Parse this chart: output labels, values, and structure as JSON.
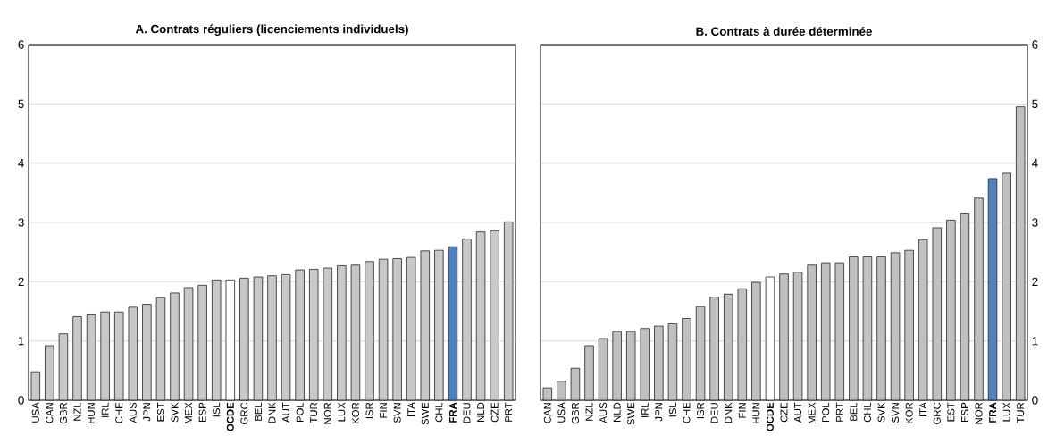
{
  "chart_data": [
    {
      "type": "bar",
      "title": "A. Contrats réguliers (licenciements individuels)",
      "categories": [
        "USA",
        "CAN",
        "GBR",
        "NZL",
        "HUN",
        "IRL",
        "CHE",
        "AUS",
        "JPN",
        "EST",
        "SVK",
        "MEX",
        "ESP",
        "ISL",
        "**OCDE**",
        "GRC",
        "BEL",
        "DNK",
        "AUT",
        "POL",
        "TUR",
        "NOR",
        "LUX",
        "KOR",
        "ISR",
        "FIN",
        "SVN",
        "ITA",
        "SWE",
        "CHL",
        "**FRA**",
        "DEU",
        "NLD",
        "CZE",
        "PRT"
      ],
      "values": [
        0.48,
        0.92,
        1.12,
        1.41,
        1.44,
        1.49,
        1.49,
        1.57,
        1.62,
        1.73,
        1.81,
        1.9,
        1.94,
        2.03,
        2.03,
        2.06,
        2.08,
        2.1,
        2.12,
        2.2,
        2.21,
        2.23,
        2.27,
        2.28,
        2.34,
        2.38,
        2.39,
        2.41,
        2.52,
        2.53,
        2.59,
        2.72,
        2.84,
        2.86,
        3.01
      ],
      "colors": [
        "#c8c8c8",
        "#c8c8c8",
        "#c8c8c8",
        "#c8c8c8",
        "#c8c8c8",
        "#c8c8c8",
        "#c8c8c8",
        "#c8c8c8",
        "#c8c8c8",
        "#c8c8c8",
        "#c8c8c8",
        "#c8c8c8",
        "#c8c8c8",
        "#c8c8c8",
        "#ffffff",
        "#c8c8c8",
        "#c8c8c8",
        "#c8c8c8",
        "#c8c8c8",
        "#c8c8c8",
        "#c8c8c8",
        "#c8c8c8",
        "#c8c8c8",
        "#c8c8c8",
        "#c8c8c8",
        "#c8c8c8",
        "#c8c8c8",
        "#c8c8c8",
        "#c8c8c8",
        "#c8c8c8",
        "#4f81bd",
        "#c8c8c8",
        "#c8c8c8",
        "#c8c8c8",
        "#c8c8c8"
      ],
      "ylim": [
        0,
        6
      ],
      "yticks": [
        0,
        1,
        2,
        3,
        4,
        5,
        6
      ],
      "grid": "y"
    },
    {
      "type": "bar",
      "title": "B. Contrats à durée déterminée",
      "categories": [
        "CAN",
        "USA",
        "GBR",
        "NZL",
        "AUS",
        "NLD",
        "SWE",
        "IRL",
        "JPN",
        "ISL",
        "CHE",
        "ISR",
        "DEU",
        "DNK",
        "FIN",
        "HUN",
        "**OCDE**",
        "CZE",
        "AUT",
        "MEX",
        "POL",
        "PRT",
        "BEL",
        "CHL",
        "SVK",
        "SVN",
        "KOR",
        "ITA",
        "GRC",
        "EST",
        "ESP",
        "NOR",
        "**FRA**",
        "LUX",
        "TUR"
      ],
      "values": [
        0.21,
        0.32,
        0.54,
        0.92,
        1.04,
        1.16,
        1.16,
        1.21,
        1.25,
        1.29,
        1.38,
        1.58,
        1.74,
        1.79,
        1.88,
        1.99,
        2.08,
        2.13,
        2.16,
        2.28,
        2.32,
        2.32,
        2.42,
        2.42,
        2.42,
        2.49,
        2.53,
        2.71,
        2.91,
        3.04,
        3.16,
        3.41,
        3.74,
        3.83,
        4.95
      ],
      "colors": [
        "#c0c0c0",
        "#c0c0c0",
        "#c0c0c0",
        "#c0c0c0",
        "#c0c0c0",
        "#c0c0c0",
        "#c0c0c0",
        "#c0c0c0",
        "#c0c0c0",
        "#c0c0c0",
        "#c0c0c0",
        "#c0c0c0",
        "#c0c0c0",
        "#c0c0c0",
        "#c0c0c0",
        "#c0c0c0",
        "#ffffff",
        "#c0c0c0",
        "#c0c0c0",
        "#c0c0c0",
        "#c0c0c0",
        "#c0c0c0",
        "#c0c0c0",
        "#c0c0c0",
        "#c0c0c0",
        "#c0c0c0",
        "#c0c0c0",
        "#c0c0c0",
        "#c0c0c0",
        "#c0c0c0",
        "#c0c0c0",
        "#c0c0c0",
        "#4f81bd",
        "#c0c0c0",
        "#c0c0c0"
      ],
      "ylim": [
        0,
        6
      ],
      "yticks": [
        0,
        1,
        2,
        3,
        4,
        5,
        6
      ],
      "grid": "y"
    }
  ]
}
